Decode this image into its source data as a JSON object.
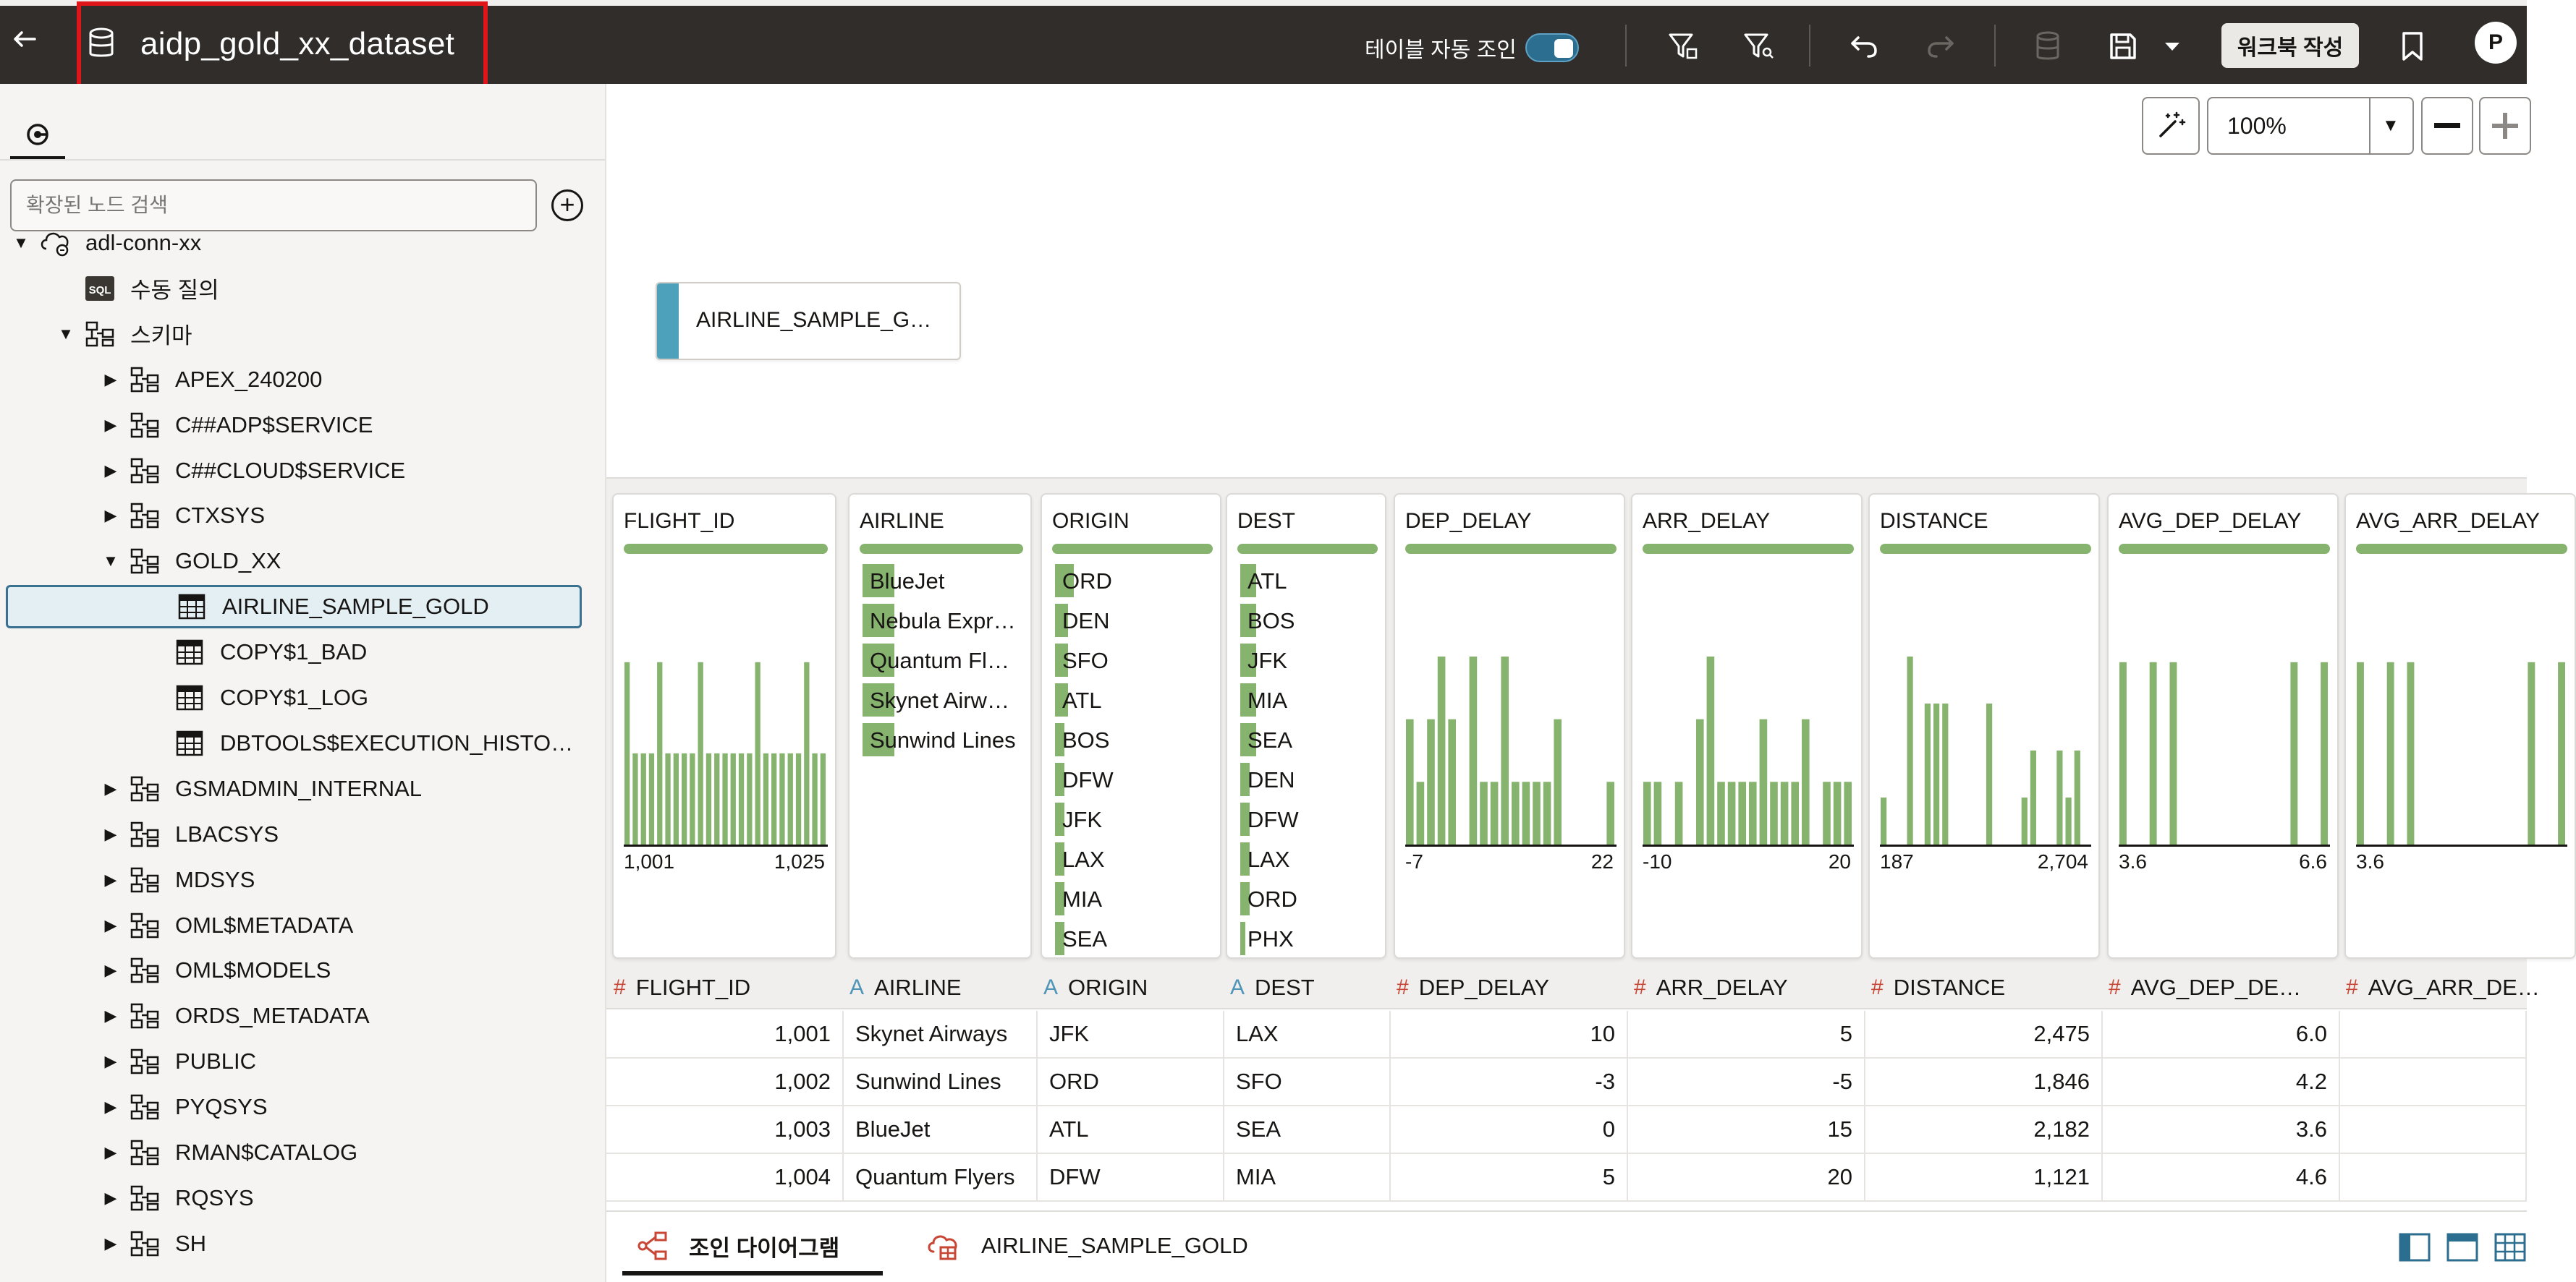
{
  "header": {
    "back_icon": "back-arrow-icon",
    "dataset_icon": "database-icon",
    "title": "aidp_gold_xx_dataset",
    "auto_join_label": "테이블 자동 조인",
    "auto_join_on": true,
    "workbook_button": "워크북 작성",
    "avatar_initial": "P",
    "highlight_color": "#e0151a"
  },
  "sidebar": {
    "tab_icon": "data-source-icon",
    "search_placeholder": "확장된 노드 검색",
    "add_icon": "plus-circle-icon",
    "tree": [
      {
        "label": "adl-conn-xx",
        "icon": "cloud-db-icon",
        "expanded": true,
        "level": 0
      },
      {
        "label": "수동 질의",
        "icon": "sql-icon",
        "level": 1
      },
      {
        "label": "스키마",
        "icon": "schema-icon",
        "expanded": true,
        "level": 1
      },
      {
        "label": "APEX_240200",
        "icon": "schema-icon",
        "level": 2
      },
      {
        "label": "C##ADP$SERVICE",
        "icon": "schema-icon",
        "level": 2
      },
      {
        "label": "C##CLOUD$SERVICE",
        "icon": "schema-icon",
        "level": 2
      },
      {
        "label": "CTXSYS",
        "icon": "schema-icon",
        "level": 2
      },
      {
        "label": "GOLD_XX",
        "icon": "schema-icon",
        "expanded": true,
        "level": 2
      },
      {
        "label": "AIRLINE_SAMPLE_GOLD",
        "icon": "table-icon",
        "level": 3,
        "selected": true
      },
      {
        "label": "COPY$1_BAD",
        "icon": "table-icon",
        "level": 3
      },
      {
        "label": "COPY$1_LOG",
        "icon": "table-icon",
        "level": 3
      },
      {
        "label": "DBTOOLS$EXECUTION_HISTO…",
        "icon": "table-icon",
        "level": 3
      },
      {
        "label": "GSMADMIN_INTERNAL",
        "icon": "schema-icon",
        "level": 2
      },
      {
        "label": "LBACSYS",
        "icon": "schema-icon",
        "level": 2
      },
      {
        "label": "MDSYS",
        "icon": "schema-icon",
        "level": 2
      },
      {
        "label": "OML$METADATA",
        "icon": "schema-icon",
        "level": 2
      },
      {
        "label": "OML$MODELS",
        "icon": "schema-icon",
        "level": 2
      },
      {
        "label": "ORDS_METADATA",
        "icon": "schema-icon",
        "level": 2
      },
      {
        "label": "PUBLIC",
        "icon": "schema-icon",
        "level": 2
      },
      {
        "label": "PYQSYS",
        "icon": "schema-icon",
        "level": 2
      },
      {
        "label": "RMAN$CATALOG",
        "icon": "schema-icon",
        "level": 2
      },
      {
        "label": "RQSYS",
        "icon": "schema-icon",
        "level": 2
      },
      {
        "label": "SH",
        "icon": "schema-icon",
        "level": 2
      }
    ]
  },
  "canvas": {
    "zoom": "100%",
    "entity_label": "AIRLINE_SAMPLE_G…"
  },
  "profiles": [
    {
      "name": "FLIGHT_ID",
      "kind": "hist",
      "min": "1,001",
      "max": "1,025",
      "bars": [
        2,
        1,
        1,
        1,
        2,
        1,
        1,
        1,
        1,
        2,
        1,
        1,
        1,
        1,
        1,
        1,
        2,
        1,
        1,
        1,
        1,
        1,
        2,
        1,
        1
      ]
    },
    {
      "name": "AIRLINE",
      "kind": "cat",
      "items": [
        {
          "label": "BlueJet",
          "frac": 0.2
        },
        {
          "label": "Nebula Expr…",
          "frac": 0.2
        },
        {
          "label": "Quantum Fl…",
          "frac": 0.2
        },
        {
          "label": "Skynet Airw…",
          "frac": 0.2
        },
        {
          "label": "Sunwind Lines",
          "frac": 0.2
        }
      ]
    },
    {
      "name": "ORIGIN",
      "kind": "cat",
      "items": [
        {
          "label": "ORD",
          "frac": 0.12
        },
        {
          "label": "DEN",
          "frac": 0.08
        },
        {
          "label": "SFO",
          "frac": 0.08
        },
        {
          "label": "ATL",
          "frac": 0.08
        },
        {
          "label": "BOS",
          "frac": 0.06
        },
        {
          "label": "DFW",
          "frac": 0.06
        },
        {
          "label": "JFK",
          "frac": 0.06
        },
        {
          "label": "LAX",
          "frac": 0.06
        },
        {
          "label": "MIA",
          "frac": 0.06
        },
        {
          "label": "SEA",
          "frac": 0.06
        }
      ]
    },
    {
      "name": "DEST",
      "kind": "cat",
      "items": [
        {
          "label": "ATL",
          "frac": 0.1
        },
        {
          "label": "BOS",
          "frac": 0.1
        },
        {
          "label": "JFK",
          "frac": 0.1
        },
        {
          "label": "MIA",
          "frac": 0.1
        },
        {
          "label": "SEA",
          "frac": 0.1
        },
        {
          "label": "DEN",
          "frac": 0.06
        },
        {
          "label": "DFW",
          "frac": 0.06
        },
        {
          "label": "LAX",
          "frac": 0.06
        },
        {
          "label": "ORD",
          "frac": 0.06
        },
        {
          "label": "PHX",
          "frac": 0.03
        }
      ]
    },
    {
      "name": "DEP_DELAY",
      "kind": "hist",
      "min": "-7",
      "max": "22",
      "bars": [
        2,
        1,
        2,
        3,
        2,
        0,
        3,
        1,
        1,
        3,
        1,
        1,
        1,
        1,
        2,
        0,
        0,
        0,
        0,
        1
      ]
    },
    {
      "name": "ARR_DELAY",
      "kind": "hist",
      "min": "-10",
      "max": "20",
      "bars": [
        1,
        1,
        0,
        1,
        0,
        2,
        3,
        1,
        1,
        1,
        1,
        2,
        1,
        1,
        1,
        2,
        0,
        1,
        1,
        1
      ]
    },
    {
      "name": "DISTANCE",
      "kind": "hist",
      "min": "187",
      "max": "2,704",
      "bars": [
        1,
        0,
        0,
        4,
        0,
        3,
        3,
        3,
        0,
        0,
        0,
        0,
        3,
        0,
        0,
        0,
        1,
        2,
        0,
        0,
        2,
        1,
        2,
        0
      ]
    },
    {
      "name": "AVG_DEP_DELAY",
      "kind": "hist",
      "min": "3.6",
      "max": "6.6",
      "bars": [
        1,
        0,
        0,
        1,
        0,
        1,
        0,
        0,
        0,
        0,
        0,
        0,
        0,
        0,
        0,
        0,
        0,
        1,
        0,
        0,
        1
      ]
    },
    {
      "name": "AVG_ARR_DELAY",
      "kind": "hist",
      "min": "3.6",
      "max": "",
      "bars": [
        1,
        0,
        0,
        1,
        0,
        1,
        0,
        0,
        0,
        0,
        0,
        0,
        0,
        0,
        0,
        0,
        0,
        1,
        0,
        0,
        1
      ]
    }
  ],
  "columns": [
    {
      "name": "FLIGHT_ID",
      "type": "#",
      "kind": "num"
    },
    {
      "name": "AIRLINE",
      "type": "A",
      "kind": "str"
    },
    {
      "name": "ORIGIN",
      "type": "A",
      "kind": "str"
    },
    {
      "name": "DEST",
      "type": "A",
      "kind": "str"
    },
    {
      "name": "DEP_DELAY",
      "type": "#",
      "kind": "num"
    },
    {
      "name": "ARR_DELAY",
      "type": "#",
      "kind": "num"
    },
    {
      "name": "DISTANCE",
      "type": "#",
      "kind": "num"
    },
    {
      "name": "AVG_DEP_DE…",
      "type": "#",
      "kind": "num"
    },
    {
      "name": "AVG_ARR_DE…",
      "type": "#",
      "kind": "num"
    }
  ],
  "rows": [
    [
      "1,001",
      "Skynet Airways",
      "JFK",
      "LAX",
      "10",
      "5",
      "2,475",
      "6.0",
      ""
    ],
    [
      "1,002",
      "Sunwind Lines",
      "ORD",
      "SFO",
      "-3",
      "-5",
      "1,846",
      "4.2",
      ""
    ],
    [
      "1,003",
      "BlueJet",
      "ATL",
      "SEA",
      "0",
      "15",
      "2,182",
      "3.6",
      ""
    ],
    [
      "1,004",
      "Quantum Flyers",
      "DFW",
      "MIA",
      "5",
      "20",
      "1,121",
      "4.6",
      ""
    ]
  ],
  "bottom_tabs": [
    {
      "label": "조인 다이어그램",
      "icon": "join-diagram-icon",
      "active": true
    },
    {
      "label": "AIRLINE_SAMPLE_GOLD",
      "icon": "cloud-table-icon",
      "active": false
    }
  ],
  "colors": {
    "accent": "#86b36d",
    "entity_accent": "#4ea1bb",
    "numeric_type": "#c74634",
    "string_type": "#4e95b8"
  }
}
